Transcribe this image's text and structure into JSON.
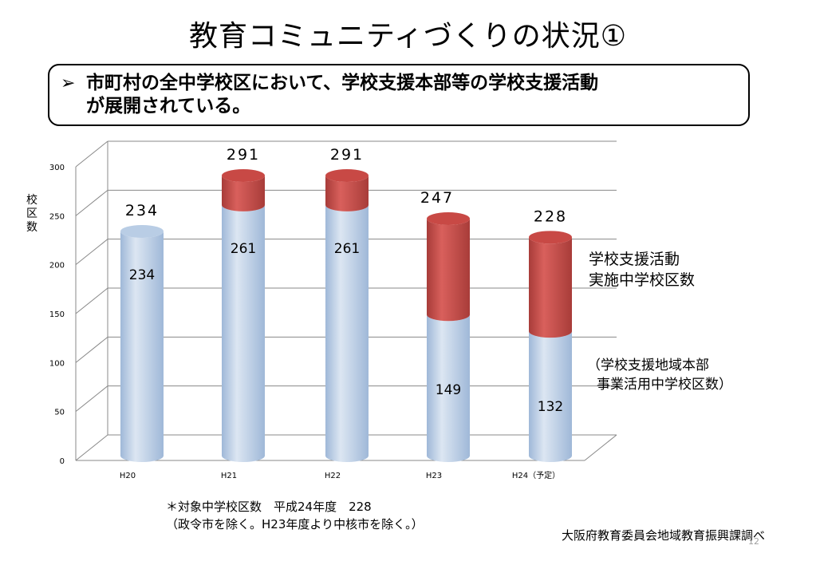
{
  "title": "教育コミュニティづくりの状況①",
  "callout": {
    "arrow": "➢",
    "text_line1": "市町村の全中学校区において、学校支援本部等の学校支援活動",
    "text_line2": "が展開されている。"
  },
  "chart_data": {
    "type": "bar",
    "stacked": true,
    "style": "3d-cylinder",
    "categories": [
      "H20",
      "H21",
      "H22",
      "H23",
      "H24（予定）"
    ],
    "ylabel": "校区数",
    "ylim": [
      0,
      300
    ],
    "yticks": [
      0,
      50,
      100,
      150,
      200,
      250,
      300
    ],
    "grid": true,
    "series": [
      {
        "name": "（学校支援地域本部 事業活用中学校区数）",
        "values": [
          234,
          261,
          261,
          149,
          132
        ],
        "color": "#b9cde5"
      },
      {
        "name": "学校支援活動 実施中学校区数",
        "values": [
          0,
          30,
          30,
          98,
          96
        ],
        "color": "#c0504d"
      }
    ],
    "totals": [
      234,
      291,
      291,
      247,
      228
    ]
  },
  "legend": {
    "top_line1": "学校支援活動",
    "top_line2": "実施中学校区数",
    "bottom_line1": "（学校支援地域本部",
    "bottom_line2": "事業活用中学校区数）"
  },
  "footnote": {
    "line1": "＊対象中学校区数　平成24年度　228",
    "line2": "（政令市を除く。H23年度より中核市を除く。）"
  },
  "source": "大阪府教育委員会地域教育振興課調べ",
  "page_number": "12"
}
